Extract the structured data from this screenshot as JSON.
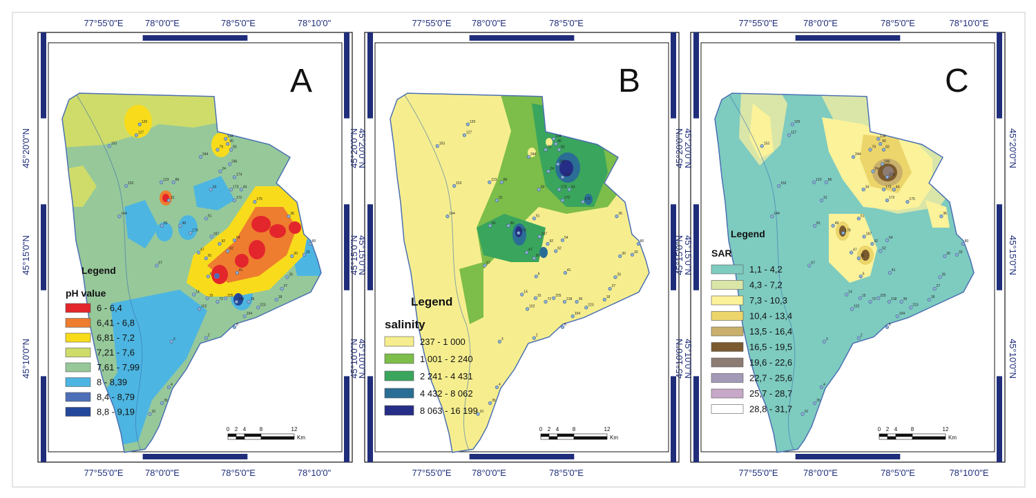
{
  "figure": {
    "panels": [
      {
        "id": "A",
        "label": "A",
        "top_lon_labels": [
          "77°55'0\"E",
          "78°0'0\"E",
          "78°5'0\"E",
          "78°10'0\""
        ],
        "bottom_lon_labels": [
          "77°55'0\"E",
          "78°0'0\"E",
          "78°5'0\"E",
          "78°10'0\""
        ],
        "left_lat_labels": [
          "45°20'0\"N",
          "45°15'0\"N",
          "45°10'0\"N"
        ],
        "right_lat_labels": [
          "45°20'0\"N",
          "45°15'0\"N",
          "45°10'0\"N"
        ],
        "legend": {
          "title": "Legend",
          "subtitle": "pH value",
          "items": [
            {
              "label": "6 - 6,4",
              "color": "#e3262b"
            },
            {
              "label": "6,41 - 6,8",
              "color": "#ee7d2f"
            },
            {
              "label": "6,81 - 7,2",
              "color": "#f8dc1c"
            },
            {
              "label": "7,21 - 7,6",
              "color": "#cfdc6a"
            },
            {
              "label": "7,61 - 7,99",
              "color": "#96c89a"
            },
            {
              "label": "8 - 8,39",
              "color": "#4db5e1"
            },
            {
              "label": "8,4 - 8,79",
              "color": "#4d6fb8"
            },
            {
              "label": "8,8 - 9,19",
              "color": "#23479a"
            }
          ]
        },
        "scale": {
          "ticks": [
            "0",
            "2",
            "4",
            "8",
            "12"
          ],
          "unit": "Km"
        }
      },
      {
        "id": "B",
        "label": "B",
        "top_lon_labels": [
          "77°55'0\"E",
          "78°0'0\"E",
          "78°5'0\"E"
        ],
        "bottom_lon_labels": [
          "77°55'0\"E",
          "78°0'0\"E",
          "78°5'0\"E"
        ],
        "left_lat_labels": [
          "45°20'0\"N",
          "45°15'0\"N",
          "45°10'0\"N"
        ],
        "right_lat_labels": [
          "45°20'0\"N",
          "45°15'0\"N",
          "45°10'0\"N"
        ],
        "legend": {
          "title": "Legend",
          "subtitle": "salinity",
          "items": [
            {
              "label": "237 - 1 000",
              "color": "#f6ee8e"
            },
            {
              "label": "1 001 - 2 240",
              "color": "#7dbd4a"
            },
            {
              "label": "2 241 - 4 431",
              "color": "#3aa55c"
            },
            {
              "label": "4 432 - 8 062",
              "color": "#2a6e96"
            },
            {
              "label": "8 063 - 16 199",
              "color": "#262d86"
            }
          ]
        },
        "scale": {
          "ticks": [
            "0",
            "2",
            "4",
            "8",
            "12"
          ],
          "unit": "Km"
        }
      },
      {
        "id": "C",
        "label": "C",
        "top_lon_labels": [
          "77°55'0\"E",
          "78°0'0\"E",
          "78°5'0\"E",
          "78°10'0\"E"
        ],
        "bottom_lon_labels": [
          "77°55'0\"E",
          "78°0'0\"E",
          "78°5'0\"E",
          "78°10'0\"E"
        ],
        "left_lat_labels": [
          "45°20'0\"N",
          "45°15'0\"N",
          "45°10'0\"N"
        ],
        "right_lat_labels": [
          "45°20'0\"N",
          "45°15'0\"N",
          "45°10'0\"N"
        ],
        "legend": {
          "title": "Legend",
          "subtitle": "SAR",
          "items": [
            {
              "label": "1,1 - 4,2",
              "color": "#7ecbc0"
            },
            {
              "label": "4,3 - 7,2",
              "color": "#d9e6a8"
            },
            {
              "label": "7,3 - 10,3",
              "color": "#fbf29a"
            },
            {
              "label": "10,4 - 13,4",
              "color": "#ecd56a"
            },
            {
              "label": "13,5 - 16,4",
              "color": "#c9b06c"
            },
            {
              "label": "16,5 - 19,5",
              "color": "#7a5a2e"
            },
            {
              "label": "19,6 - 22,6",
              "color": "#8c7c74"
            },
            {
              "label": "22,7 - 25,6",
              "color": "#a39ab8"
            },
            {
              "label": "25,7 - 28,7",
              "color": "#c7a8c8"
            },
            {
              "label": "28,8 - 31,7",
              "color": "#ffffff"
            }
          ]
        },
        "scale": {
          "ticks": [
            "0",
            "2",
            "4",
            "8",
            "12"
          ],
          "unit": "Km"
        }
      }
    ],
    "sample_points": [
      "129",
      "127",
      "153",
      "134",
      "90",
      "83",
      "79",
      "244",
      "246",
      "24",
      "174",
      "123",
      "86",
      "34",
      "173",
      "44",
      "152",
      "31",
      "172",
      "175",
      "144",
      "36",
      "51",
      "81",
      "49",
      "179",
      "187",
      "92",
      "54",
      "80",
      "62",
      "47",
      "91",
      "30",
      "33",
      "67",
      "6",
      "41",
      "26",
      "27",
      "18",
      "14",
      "15",
      "72",
      "225",
      "218",
      "39",
      "223",
      "102",
      "104",
      "8",
      "2",
      "3",
      "4",
      "35",
      "10"
    ]
  }
}
